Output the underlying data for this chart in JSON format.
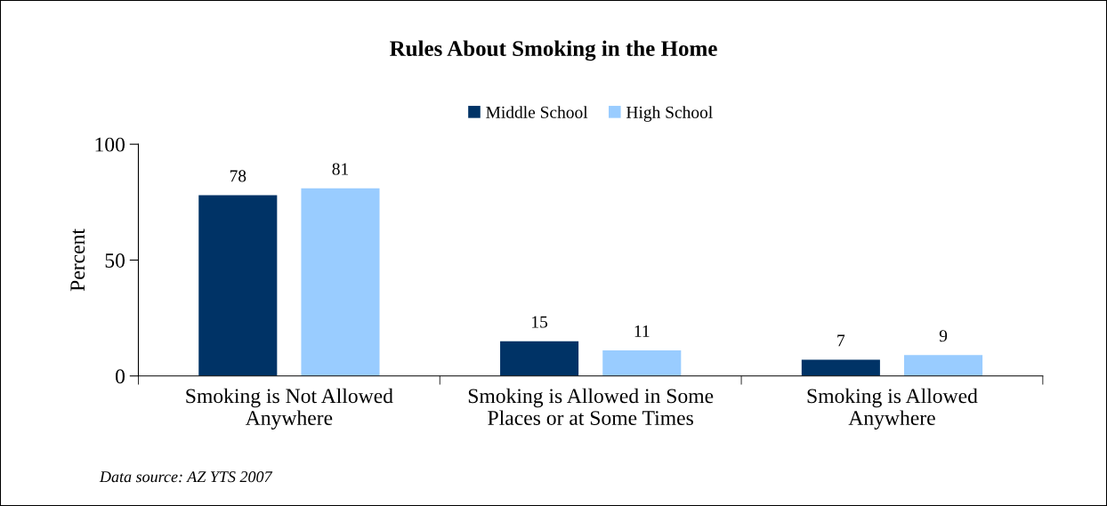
{
  "chart_data": {
    "type": "bar",
    "title": "Rules About Smoking in the Home",
    "ylabel": "Percent",
    "categories": [
      "Smoking is Not Allowed\nAnywhere",
      "Smoking is Allowed in Some\nPlaces or at Some Times",
      "Smoking is Allowed\nAnywhere"
    ],
    "series": [
      {
        "name": "Middle School",
        "color": "#003366",
        "values": [
          78,
          15,
          7
        ]
      },
      {
        "name": "High School",
        "color": "#99ccff",
        "values": [
          81,
          11,
          9
        ]
      }
    ],
    "ylim": [
      0,
      100
    ],
    "yticks": [
      0,
      50,
      100
    ],
    "data_labels": true,
    "legend": "top",
    "grid": false,
    "annotations": [
      "Data source: AZ YTS 2007"
    ]
  }
}
